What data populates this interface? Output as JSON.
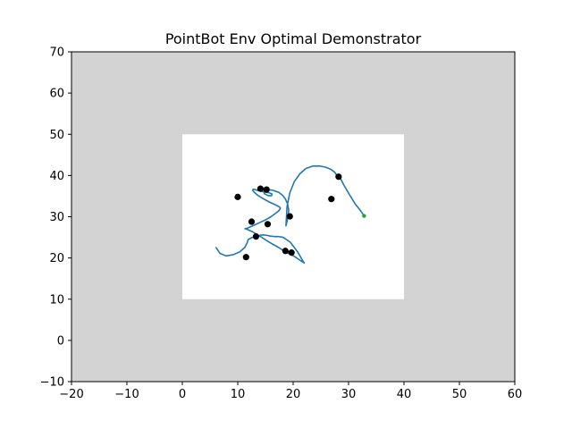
{
  "chart_data": {
    "type": "line",
    "title": "PointBot Env Optimal Demonstrator",
    "xlabel": "",
    "ylabel": "",
    "xlim": [
      -20,
      60
    ],
    "ylim": [
      -10,
      70
    ],
    "xticks": [
      -20,
      -10,
      0,
      10,
      20,
      30,
      40,
      50,
      60
    ],
    "yticks": [
      -10,
      0,
      10,
      20,
      30,
      40,
      50,
      60,
      70
    ],
    "grid": false,
    "colors": {
      "background_region": "#d3d3d3",
      "free_region": "#ffffff",
      "trajectory": "#1f77b4",
      "waypoints": "#000000",
      "goal": "#2ca02c"
    },
    "free_region": {
      "x": [
        0,
        40
      ],
      "y": [
        10,
        50
      ]
    },
    "trajectory": {
      "x": [
        6.1,
        6.8,
        7.9,
        9.2,
        10.4,
        11.3,
        11.7,
        11.9,
        12.5,
        13.3,
        14.0,
        14.6,
        15.2,
        15.9,
        16.6,
        17.3,
        18.2,
        19.5,
        20.8,
        21.7,
        22.0,
        21.3,
        20.2,
        18.6,
        17.3,
        15.7,
        14.1,
        12.6,
        11.6,
        11.3,
        11.7,
        12.7,
        14.0,
        15.1,
        16.0,
        16.7,
        17.3,
        17.6,
        17.7,
        17.5,
        16.8,
        15.8,
        14.7,
        13.6,
        13.0,
        12.7,
        12.8,
        13.1,
        13.8,
        14.8,
        15.7,
        16.2,
        16.1,
        15.5,
        14.8,
        14.7,
        15.4,
        16.4,
        17.4,
        18.1,
        18.6,
        19.0,
        19.2,
        19.1,
        18.9,
        18.7,
        18.9,
        19.4,
        20.2,
        21.2,
        22.3,
        23.6,
        24.8,
        25.9,
        26.8,
        27.5,
        27.9,
        28.2,
        28.4,
        28.5,
        29.1,
        30.1,
        31.2,
        32.2,
        32.8
      ],
      "y": [
        22.5,
        21.1,
        20.5,
        20.8,
        21.5,
        22.6,
        23.7,
        24.5,
        24.9,
        25.3,
        25.5,
        25.6,
        25.5,
        25.3,
        25.2,
        25.2,
        25.0,
        23.8,
        21.5,
        19.4,
        18.8,
        19.4,
        20.4,
        21.5,
        22.6,
        23.8,
        25.2,
        26.4,
        27.0,
        27.1,
        27.2,
        27.8,
        28.6,
        29.3,
        30.0,
        30.7,
        31.3,
        31.8,
        32.1,
        32.4,
        32.9,
        33.5,
        34.3,
        35.2,
        35.9,
        36.4,
        36.7,
        36.6,
        36.3,
        36.0,
        35.8,
        35.5,
        35.1,
        35.1,
        35.6,
        36.3,
        36.6,
        36.4,
        35.9,
        35.2,
        34.3,
        33.1,
        31.6,
        30.2,
        28.9,
        27.8,
        32.5,
        35.8,
        38.5,
        40.4,
        41.7,
        42.3,
        42.3,
        42.0,
        41.5,
        40.8,
        40.0,
        39.5,
        39.3,
        39.4,
        37.8,
        35.5,
        33.1,
        31.4,
        30.2
      ]
    },
    "waypoints": {
      "x": [
        28.2,
        26.9,
        19.4,
        15.4,
        15.2,
        14.1,
        10.0,
        12.5,
        13.3,
        18.6,
        19.7,
        11.5
      ],
      "y": [
        39.7,
        34.3,
        30.1,
        28.2,
        36.6,
        36.8,
        34.8,
        28.8,
        25.2,
        21.7,
        21.3,
        20.2
      ]
    },
    "goal": {
      "x": 32.8,
      "y": 30.2
    }
  }
}
